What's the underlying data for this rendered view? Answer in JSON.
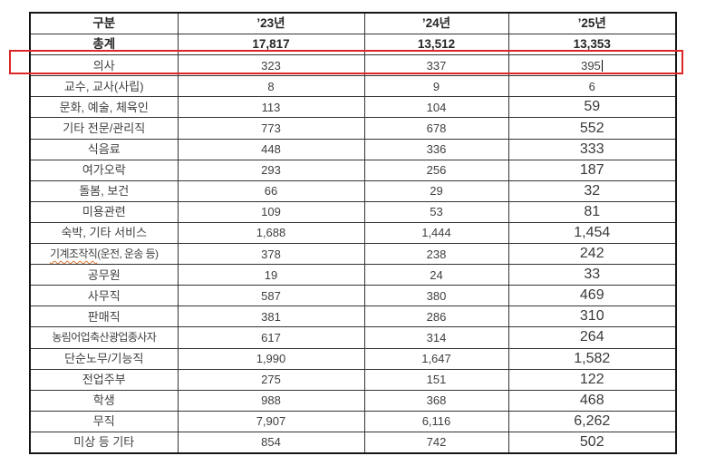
{
  "colors": {
    "highlight_box": "#dd2726",
    "spellcheck_underline": "#e0762f",
    "text": "#3f3f3f",
    "text_bold": "#262626",
    "table_border": "#161616"
  },
  "table": {
    "header": [
      "구분",
      "’23년",
      "’24년",
      "’25년"
    ],
    "rows": [
      {
        "label": "총계",
        "values": [
          "17,817",
          "13,512",
          "13,353"
        ],
        "bold": true
      },
      {
        "label": "의사",
        "values": [
          "323",
          "337",
          "395"
        ],
        "highlighted": true,
        "text_cursor_after_last": true
      },
      {
        "label": "교수, 교사(사립)",
        "values": [
          "8",
          "9",
          "6"
        ]
      },
      {
        "label": "문화, 예술, 체육인",
        "values": [
          "113",
          "104",
          "59"
        ],
        "last_large": true
      },
      {
        "label": "기타 전문/관리직",
        "values": [
          "773",
          "678",
          "552"
        ],
        "last_large": true
      },
      {
        "label": "식음료",
        "values": [
          "448",
          "336",
          "333"
        ],
        "last_large": true
      },
      {
        "label": "여가오락",
        "values": [
          "293",
          "256",
          "187"
        ],
        "last_large": true
      },
      {
        "label": "돌봄, 보건",
        "values": [
          "66",
          "29",
          "32"
        ],
        "last_large": true
      },
      {
        "label": "미용관련",
        "values": [
          "109",
          "53",
          "81"
        ],
        "last_large": true
      },
      {
        "label": "숙박, 기타 서비스",
        "values": [
          "1,688",
          "1,444",
          "1,454"
        ],
        "last_large": true
      },
      {
        "label": "기계조작직(운전, 운송 등)",
        "misspelled_part": "기계조작직",
        "label_rest": "(운전, 운송 등)",
        "values": [
          "378",
          "238",
          "242"
        ],
        "last_large": true,
        "compact_label": true
      },
      {
        "label": "공무원",
        "values": [
          "19",
          "24",
          "33"
        ],
        "last_large": true
      },
      {
        "label": "사무직",
        "values": [
          "587",
          "380",
          "469"
        ],
        "last_large": true
      },
      {
        "label": "판매직",
        "values": [
          "381",
          "286",
          "310"
        ],
        "last_large": true
      },
      {
        "label": "농림어업축산광업종사자",
        "values": [
          "617",
          "314",
          "264"
        ],
        "last_large": true,
        "compact_label": true
      },
      {
        "label": "단순노무/기능직",
        "values": [
          "1,990",
          "1,647",
          "1,582"
        ],
        "last_large": true
      },
      {
        "label": "전업주부",
        "values": [
          "275",
          "151",
          "122"
        ],
        "last_large": true
      },
      {
        "label": "학생",
        "values": [
          "988",
          "368",
          "468"
        ],
        "last_large": true
      },
      {
        "label": "무직",
        "values": [
          "7,907",
          "6,116",
          "6,262"
        ],
        "last_large": true
      },
      {
        "label": "미상 등 기타",
        "values": [
          "854",
          "742",
          "502"
        ],
        "last_large": true
      }
    ],
    "year_column_count": 3
  },
  "annotations": {
    "highlight_box_row": "의사",
    "text_cursor_visible": true
  }
}
